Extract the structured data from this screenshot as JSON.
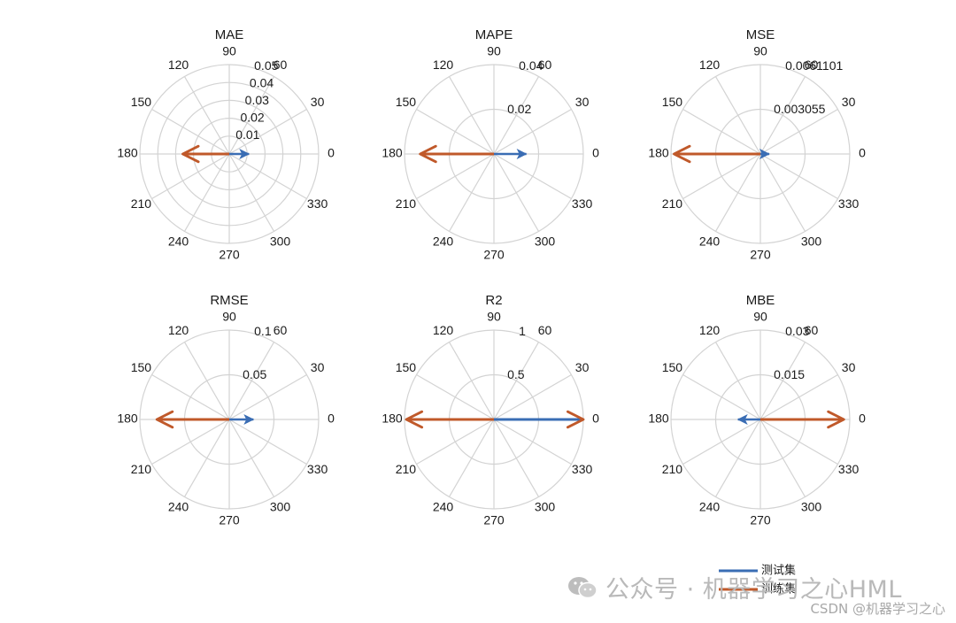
{
  "chart_data": {
    "type": "polar-compass",
    "colors": {
      "test": "#3a6db4",
      "train": "#c0592a",
      "grid": "#d3d3d3"
    },
    "theta_ticks": [
      "0",
      "30",
      "60",
      "90",
      "120",
      "150",
      "180",
      "210",
      "240",
      "270",
      "300",
      "330"
    ],
    "legend": {
      "placement": "bottom-right",
      "entries": [
        "测试集",
        "训练集"
      ]
    },
    "subplots": [
      {
        "title": "MAE",
        "rmax": 0.05,
        "r_ticks": [
          "0.01",
          "0.02",
          "0.03",
          "0.04",
          "0.05"
        ],
        "rings": [
          0.01,
          0.02,
          0.03,
          0.04,
          0.05
        ],
        "series": [
          {
            "name": "测试集",
            "angle": 0,
            "magnitude": 0.011
          },
          {
            "name": "训练集",
            "angle": 180,
            "magnitude": 0.026
          }
        ]
      },
      {
        "title": "MAPE",
        "rmax": 0.04,
        "r_ticks": [
          "0.02",
          "0.04"
        ],
        "rings": [
          0.02,
          0.04
        ],
        "series": [
          {
            "name": "测试集",
            "angle": 0,
            "magnitude": 0.0145
          },
          {
            "name": "训练集",
            "angle": 180,
            "magnitude": 0.033
          }
        ]
      },
      {
        "title": "MSE",
        "rmax": 0.0061101,
        "r_ticks": [
          "0.003055",
          "0.0061101"
        ],
        "rings": [
          0.003055,
          0.0061101
        ],
        "series": [
          {
            "name": "测试集",
            "angle": 0,
            "magnitude": 0.0006
          },
          {
            "name": "训练集",
            "angle": 180,
            "magnitude": 0.0059
          }
        ]
      },
      {
        "title": "RMSE",
        "rmax": 0.1,
        "r_ticks": [
          "0.05",
          "0.1"
        ],
        "rings": [
          0.05,
          0.1
        ],
        "series": [
          {
            "name": "测试集",
            "angle": 0,
            "magnitude": 0.027
          },
          {
            "name": "训练集",
            "angle": 180,
            "magnitude": 0.081
          }
        ]
      },
      {
        "title": "R2",
        "rmax": 1,
        "r_ticks": [
          "0.5",
          "1"
        ],
        "rings": [
          0.5,
          1
        ],
        "series": [
          {
            "name": "测试集",
            "angle": 0,
            "magnitude": 1.0
          },
          {
            "name": "训练集",
            "angle": 180,
            "magnitude": 0.98
          }
        ]
      },
      {
        "title": "MBE",
        "rmax": 0.03,
        "r_ticks": [
          "0.015",
          "0.03"
        ],
        "rings": [
          0.015,
          0.03
        ],
        "series": [
          {
            "name": "测试集",
            "angle": 180,
            "magnitude": 0.0075
          },
          {
            "name": "训练集",
            "angle": 0,
            "magnitude": 0.028
          }
        ]
      }
    ]
  },
  "watermark": {
    "main": "公众号 · 机器学习之心HML",
    "csdn": "CSDN @机器学习之心"
  }
}
